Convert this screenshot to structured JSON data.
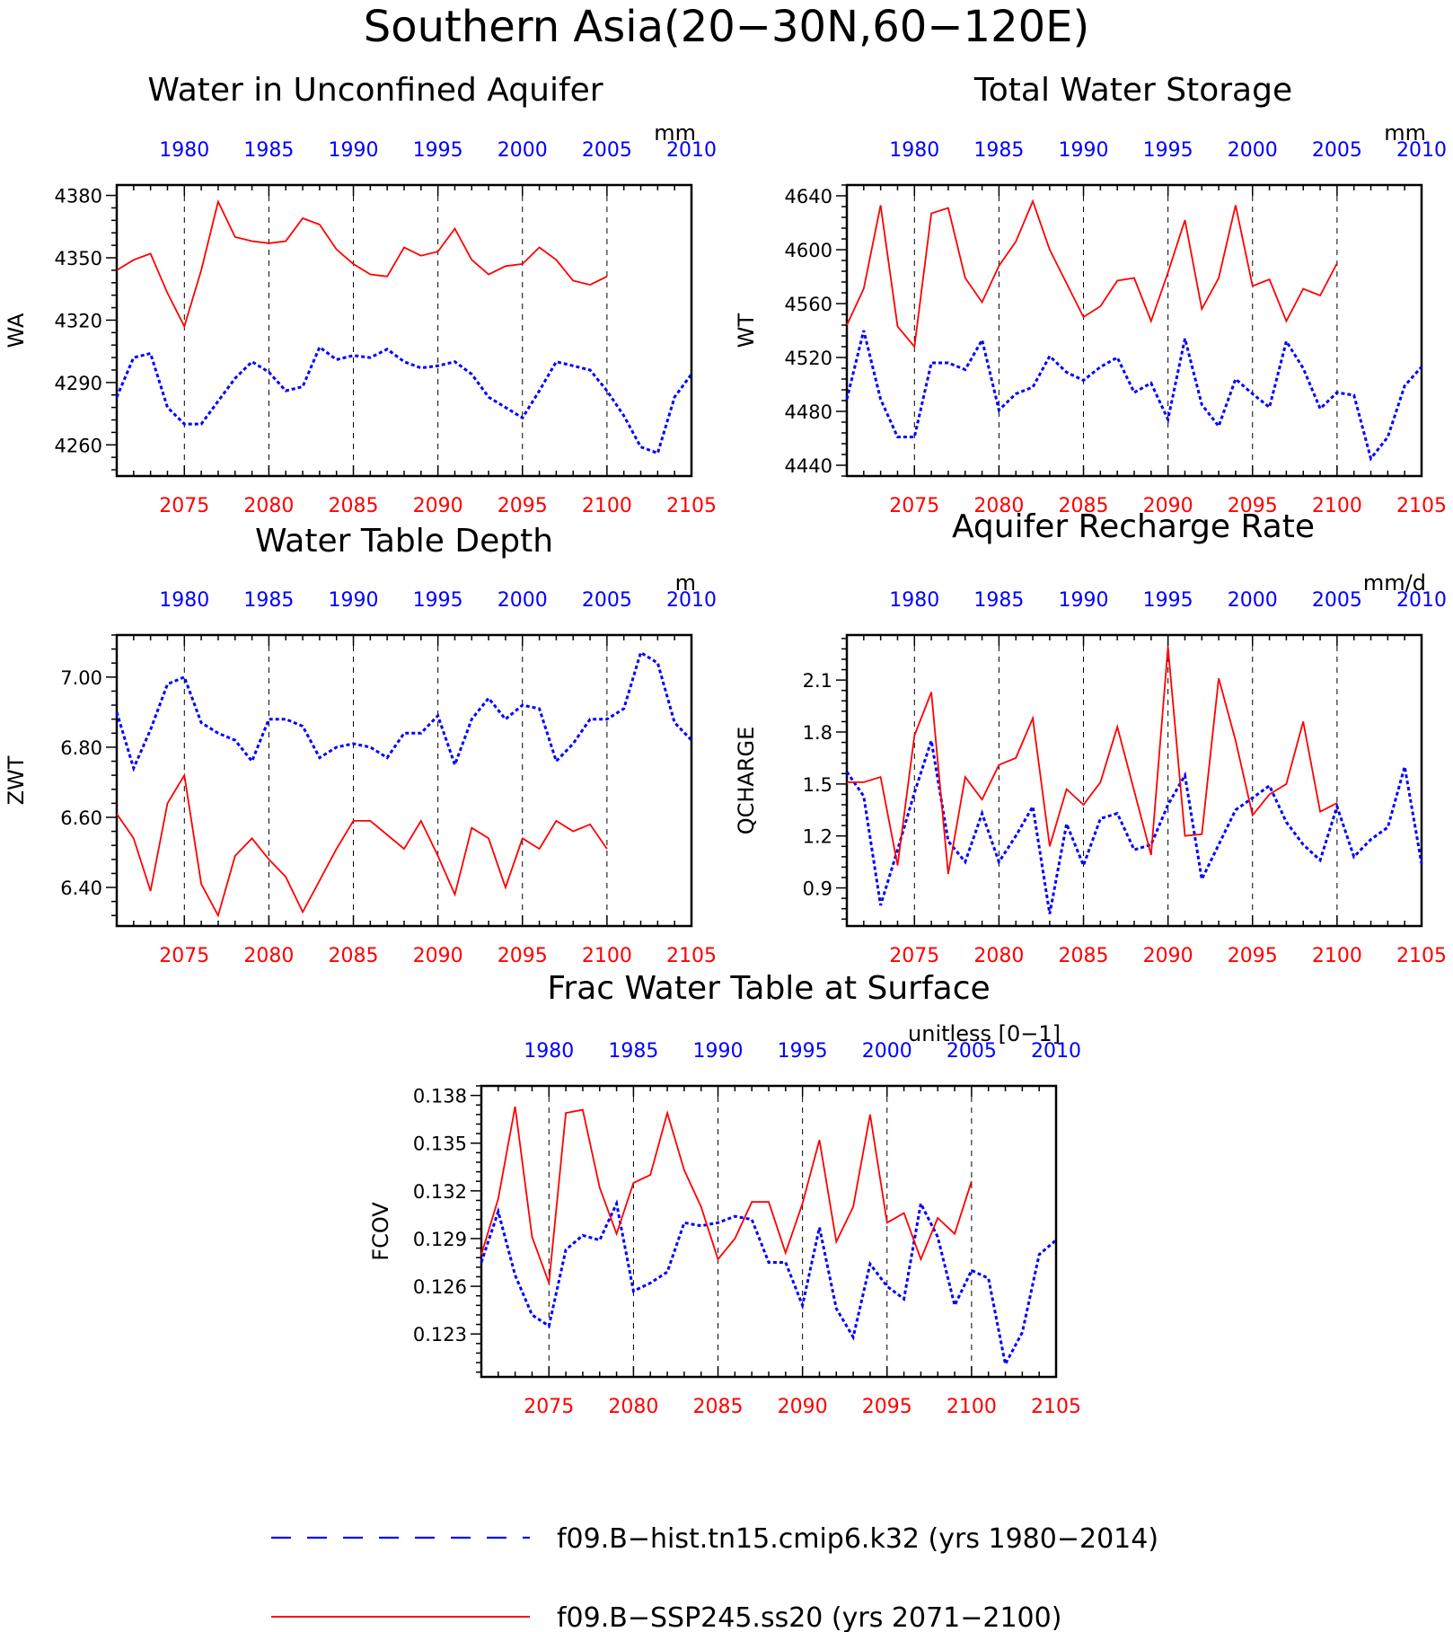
{
  "figure_title": "Southern Asia(20−30N,60−120E)",
  "colors": {
    "hist": "#0000ff",
    "ssp": "#ff0000",
    "axis": "#000000"
  },
  "legend": {
    "hist_label": "f09.B−hist.tn15.cmip6.k32 (yrs 1980−2014)",
    "ssp_label": "f09.B−SSP245.ss20 (yrs 2071−2100)"
  },
  "chart_data": [
    {
      "type": "line",
      "title": "Water in Unconfined Aquifer",
      "ylabel": "WA",
      "units": "mm",
      "ylim": [
        4245,
        4385
      ],
      "yticks": [
        4260,
        4290,
        4320,
        4350,
        4380
      ],
      "ytick_labels": [
        "4260",
        "4290",
        "4320",
        "4350",
        "4380"
      ],
      "top_xlim": [
        1976,
        2010
      ],
      "top_ticks": [
        1980,
        1985,
        1990,
        1995,
        2000,
        2005,
        2010
      ],
      "bottom_xlim": [
        2071,
        2105
      ],
      "bottom_ticks": [
        2075,
        2080,
        2085,
        2090,
        2095,
        2100,
        2105
      ],
      "series": [
        {
          "name": "f09.B−hist.tn15.cmip6.k32 (yrs 1980−2014)",
          "style": "dashed",
          "axis": "top",
          "x": [
            1976,
            1977,
            1978,
            1979,
            1980,
            1981,
            1982,
            1983,
            1984,
            1985,
            1986,
            1987,
            1988,
            1989,
            1990,
            1991,
            1992,
            1993,
            1994,
            1995,
            1996,
            1997,
            1998,
            1999,
            2000,
            2001,
            2002,
            2003,
            2004,
            2005,
            2006,
            2007,
            2008,
            2009,
            2010
          ],
          "y": [
            4283,
            4302,
            4304,
            4278,
            4270,
            4270,
            4281,
            4292,
            4300,
            4295,
            4286,
            4288,
            4307,
            4301,
            4303,
            4302,
            4306,
            4300,
            4297,
            4298,
            4300,
            4294,
            4283,
            4278,
            4273,
            4286,
            4300,
            4298,
            4296,
            4286,
            4274,
            4259,
            4256,
            4283,
            4294
          ]
        },
        {
          "name": "f09.B−SSP245.ss20 (yrs 2071−2100)",
          "style": "solid",
          "axis": "bottom",
          "x": [
            2071,
            2072,
            2073,
            2074,
            2075,
            2076,
            2077,
            2078,
            2079,
            2080,
            2081,
            2082,
            2083,
            2084,
            2085,
            2086,
            2087,
            2088,
            2089,
            2090,
            2091,
            2092,
            2093,
            2094,
            2095,
            2096,
            2097,
            2098,
            2099,
            2100
          ],
          "y": [
            4344,
            4349,
            4352,
            4333,
            4317,
            4344,
            4377,
            4360,
            4358,
            4357,
            4358,
            4369,
            4366,
            4354,
            4347,
            4342,
            4341,
            4355,
            4351,
            4353,
            4364,
            4349,
            4342,
            4346,
            4347,
            4355,
            4349,
            4339,
            4337,
            4341
          ]
        }
      ]
    },
    {
      "type": "line",
      "title": "Total Water Storage",
      "ylabel": "WT",
      "units": "mm",
      "ylim": [
        4432,
        4648
      ],
      "yticks": [
        4440,
        4480,
        4520,
        4560,
        4600,
        4640
      ],
      "ytick_labels": [
        "4440",
        "4480",
        "4520",
        "4560",
        "4600",
        "4640"
      ],
      "top_xlim": [
        1976,
        2010
      ],
      "top_ticks": [
        1980,
        1985,
        1990,
        1995,
        2000,
        2005,
        2010
      ],
      "bottom_xlim": [
        2071,
        2105
      ],
      "bottom_ticks": [
        2075,
        2080,
        2085,
        2090,
        2095,
        2100,
        2105
      ],
      "series": [
        {
          "name": "f09.B−hist.tn15.cmip6.k32 (yrs 1980−2014)",
          "style": "dashed",
          "axis": "top",
          "x": [
            1976,
            1977,
            1978,
            1979,
            1980,
            1981,
            1982,
            1983,
            1984,
            1985,
            1986,
            1987,
            1988,
            1989,
            1990,
            1991,
            1992,
            1993,
            1994,
            1995,
            1996,
            1997,
            1998,
            1999,
            2000,
            2001,
            2002,
            2003,
            2004,
            2005,
            2006,
            2007,
            2008,
            2009,
            2010
          ],
          "y": [
            4489,
            4540,
            4489,
            4461,
            4461,
            4516,
            4516,
            4511,
            4533,
            4481,
            4493,
            4498,
            4521,
            4509,
            4503,
            4513,
            4520,
            4494,
            4501,
            4474,
            4534,
            4485,
            4469,
            4504,
            4493,
            4483,
            4532,
            4512,
            4482,
            4494,
            4492,
            4445,
            4461,
            4499,
            4513
          ]
        },
        {
          "name": "f09.B−SSP245.ss20 (yrs 2071−2100)",
          "style": "solid",
          "axis": "bottom",
          "x": [
            2071,
            2072,
            2073,
            2074,
            2075,
            2076,
            2077,
            2078,
            2079,
            2080,
            2081,
            2082,
            2083,
            2084,
            2085,
            2086,
            2087,
            2088,
            2089,
            2090,
            2091,
            2092,
            2093,
            2094,
            2095,
            2096,
            2097,
            2098,
            2099,
            2100
          ],
          "y": [
            4544,
            4571,
            4633,
            4543,
            4528,
            4627,
            4631,
            4579,
            4561,
            4588,
            4606,
            4636,
            4600,
            4575,
            4550,
            4558,
            4577,
            4579,
            4547,
            4583,
            4622,
            4556,
            4579,
            4633,
            4573,
            4578,
            4547,
            4571,
            4566,
            4590
          ]
        }
      ]
    },
    {
      "type": "line",
      "title": "Water Table Depth",
      "ylabel": "ZWT",
      "units": "m",
      "ylim": [
        6.29,
        7.12
      ],
      "yticks": [
        6.4,
        6.6,
        6.8,
        7.0
      ],
      "ytick_labels": [
        "6.40",
        "6.60",
        "6.80",
        "7.00"
      ],
      "top_xlim": [
        1976,
        2010
      ],
      "top_ticks": [
        1980,
        1985,
        1990,
        1995,
        2000,
        2005,
        2010
      ],
      "bottom_xlim": [
        2071,
        2105
      ],
      "bottom_ticks": [
        2075,
        2080,
        2085,
        2090,
        2095,
        2100,
        2105
      ],
      "series": [
        {
          "name": "f09.B−hist.tn15.cmip6.k32 (yrs 1980−2014)",
          "style": "dashed",
          "axis": "top",
          "x": [
            1976,
            1977,
            1978,
            1979,
            1980,
            1981,
            1982,
            1983,
            1984,
            1985,
            1986,
            1987,
            1988,
            1989,
            1990,
            1991,
            1992,
            1993,
            1994,
            1995,
            1996,
            1997,
            1998,
            1999,
            2000,
            2001,
            2002,
            2003,
            2004,
            2005,
            2006,
            2007,
            2008,
            2009,
            2010
          ],
          "y": [
            6.9,
            6.74,
            6.85,
            6.98,
            7.0,
            6.87,
            6.84,
            6.82,
            6.76,
            6.88,
            6.88,
            6.86,
            6.77,
            6.8,
            6.81,
            6.8,
            6.77,
            6.84,
            6.84,
            6.89,
            6.75,
            6.88,
            6.94,
            6.88,
            6.92,
            6.91,
            6.76,
            6.81,
            6.88,
            6.88,
            6.91,
            7.07,
            7.04,
            6.87,
            6.82
          ]
        },
        {
          "name": "f09.B−SSP245.ss20 (yrs 2071−2100)",
          "style": "solid",
          "axis": "bottom",
          "x": [
            2071,
            2072,
            2073,
            2074,
            2075,
            2076,
            2077,
            2078,
            2079,
            2080,
            2081,
            2082,
            2083,
            2084,
            2085,
            2086,
            2087,
            2088,
            2089,
            2090,
            2091,
            2092,
            2093,
            2094,
            2095,
            2096,
            2097,
            2098,
            2099,
            2100
          ],
          "y": [
            6.61,
            6.54,
            6.39,
            6.64,
            6.72,
            6.41,
            6.32,
            6.49,
            6.54,
            6.48,
            6.43,
            6.33,
            6.42,
            6.51,
            6.59,
            6.59,
            6.55,
            6.51,
            6.59,
            6.49,
            6.38,
            6.57,
            6.54,
            6.4,
            6.54,
            6.51,
            6.59,
            6.56,
            6.58,
            6.51
          ]
        }
      ]
    },
    {
      "type": "line",
      "title": "Aquifer Recharge Rate",
      "ylabel": "QCHARGE",
      "units": "mm/d",
      "ylim": [
        0.68,
        2.36
      ],
      "yticks": [
        0.9,
        1.2,
        1.5,
        1.8,
        2.1
      ],
      "ytick_labels": [
        "0.9",
        "1.2",
        "1.5",
        "1.8",
        "2.1"
      ],
      "top_xlim": [
        1976,
        2010
      ],
      "top_ticks": [
        1980,
        1985,
        1990,
        1995,
        2000,
        2005,
        2010
      ],
      "bottom_xlim": [
        2071,
        2105
      ],
      "bottom_ticks": [
        2075,
        2080,
        2085,
        2090,
        2095,
        2100,
        2105
      ],
      "series": [
        {
          "name": "f09.B−hist.tn15.cmip6.k32 (yrs 1980−2014)",
          "style": "dashed",
          "axis": "top",
          "x": [
            1976,
            1977,
            1978,
            1979,
            1980,
            1981,
            1982,
            1983,
            1984,
            1985,
            1986,
            1987,
            1988,
            1989,
            1990,
            1991,
            1992,
            1993,
            1994,
            1995,
            1996,
            1997,
            1998,
            1999,
            2000,
            2001,
            2002,
            2003,
            2004,
            2005,
            2006,
            2007,
            2008,
            2009,
            2010
          ],
          "y": [
            1.57,
            1.43,
            0.8,
            1.12,
            1.45,
            1.75,
            1.17,
            1.05,
            1.33,
            1.05,
            1.2,
            1.37,
            0.75,
            1.27,
            1.03,
            1.3,
            1.33,
            1.12,
            1.15,
            1.38,
            1.55,
            0.95,
            1.15,
            1.35,
            1.42,
            1.49,
            1.28,
            1.15,
            1.06,
            1.37,
            1.08,
            1.18,
            1.25,
            1.6,
            1.04
          ]
        },
        {
          "name": "f09.B−SSP245.ss20 (yrs 2071−2100)",
          "style": "solid",
          "axis": "bottom",
          "x": [
            2071,
            2072,
            2073,
            2074,
            2075,
            2076,
            2077,
            2078,
            2079,
            2080,
            2081,
            2082,
            2083,
            2084,
            2085,
            2086,
            2087,
            2088,
            2089,
            2090,
            2091,
            2092,
            2093,
            2094,
            2095,
            2096,
            2097,
            2098,
            2099,
            2100
          ],
          "y": [
            1.51,
            1.51,
            1.54,
            1.03,
            1.78,
            2.03,
            0.98,
            1.54,
            1.41,
            1.61,
            1.65,
            1.88,
            1.14,
            1.47,
            1.38,
            1.51,
            1.83,
            1.46,
            1.09,
            2.29,
            1.2,
            1.21,
            2.11,
            1.75,
            1.32,
            1.44,
            1.5,
            1.86,
            1.34,
            1.39
          ]
        }
      ]
    },
    {
      "type": "line",
      "title": "Frac Water Table at Surface",
      "ylabel": "FCOV",
      "units": "unitless [0−1]",
      "ylim": [
        0.1203,
        0.1386
      ],
      "yticks": [
        0.123,
        0.126,
        0.129,
        0.132,
        0.135,
        0.138
      ],
      "ytick_labels": [
        "0.123",
        "0.126",
        "0.129",
        "0.132",
        "0.135",
        "0.138"
      ],
      "top_xlim": [
        1976,
        2010
      ],
      "top_ticks": [
        1980,
        1985,
        1990,
        1995,
        2000,
        2005,
        2010
      ],
      "bottom_xlim": [
        2071,
        2105
      ],
      "bottom_ticks": [
        2075,
        2080,
        2085,
        2090,
        2095,
        2100,
        2105
      ],
      "series": [
        {
          "name": "f09.B−hist.tn15.cmip6.k32 (yrs 1980−2014)",
          "style": "dashed",
          "axis": "top",
          "x": [
            1976,
            1977,
            1978,
            1979,
            1980,
            1981,
            1982,
            1983,
            1984,
            1985,
            1986,
            1987,
            1988,
            1989,
            1990,
            1991,
            1992,
            1993,
            1994,
            1995,
            1996,
            1997,
            1998,
            1999,
            2000,
            2001,
            2002,
            2003,
            2004,
            2005,
            2006,
            2007,
            2008,
            2009,
            2010
          ],
          "y": [
            0.1275,
            0.1307,
            0.1267,
            0.1242,
            0.1235,
            0.1283,
            0.1292,
            0.1289,
            0.1312,
            0.1257,
            0.1262,
            0.1269,
            0.13,
            0.1298,
            0.13,
            0.1304,
            0.1302,
            0.1275,
            0.1275,
            0.1248,
            0.1297,
            0.1246,
            0.1228,
            0.1274,
            0.126,
            0.1252,
            0.1312,
            0.1291,
            0.1248,
            0.127,
            0.1265,
            0.1211,
            0.1231,
            0.128,
            0.1289
          ]
        },
        {
          "name": "f09.B−SSP245.ss20 (yrs 2071−2100)",
          "style": "solid",
          "axis": "bottom",
          "x": [
            2071,
            2072,
            2073,
            2074,
            2075,
            2076,
            2077,
            2078,
            2079,
            2080,
            2081,
            2082,
            2083,
            2084,
            2085,
            2086,
            2087,
            2088,
            2089,
            2090,
            2091,
            2092,
            2093,
            2094,
            2095,
            2096,
            2097,
            2098,
            2099,
            2100
          ],
          "y": [
            0.128,
            0.1315,
            0.1373,
            0.1291,
            0.1262,
            0.1369,
            0.1371,
            0.1322,
            0.1293,
            0.1325,
            0.133,
            0.1369,
            0.1333,
            0.131,
            0.1277,
            0.129,
            0.1313,
            0.1313,
            0.1281,
            0.1312,
            0.1352,
            0.1288,
            0.131,
            0.1368,
            0.13,
            0.1306,
            0.1277,
            0.1303,
            0.1293,
            0.1326
          ]
        }
      ]
    }
  ]
}
